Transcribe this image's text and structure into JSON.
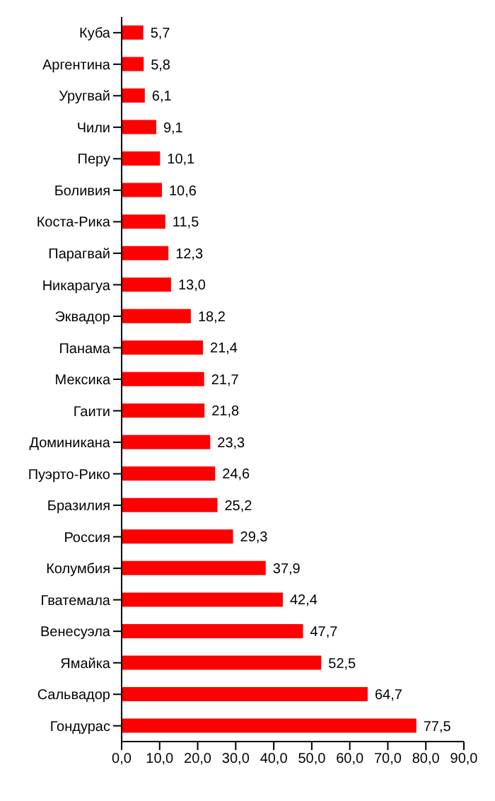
{
  "chart_data": {
    "type": "bar",
    "orientation": "horizontal",
    "categories": [
      "Куба",
      "Аргентина",
      "Уругвай",
      "Чили",
      "Перу",
      "Боливия",
      "Коста-Рика",
      "Парагвай",
      "Никарагуа",
      "Эквадор",
      "Панама",
      "Мексика",
      "Гаити",
      "Доминикана",
      "Пуэрто-Рико",
      "Бразилия",
      "Россия",
      "Колумбия",
      "Гватемала",
      "Венесуэла",
      "Ямайка",
      "Сальвадор",
      "Гондурас"
    ],
    "values": [
      5.7,
      5.8,
      6.1,
      9.1,
      10.1,
      10.6,
      11.5,
      12.3,
      13.0,
      18.2,
      21.4,
      21.7,
      21.8,
      23.3,
      24.6,
      25.2,
      29.3,
      37.9,
      42.4,
      47.7,
      52.5,
      64.7,
      77.5
    ],
    "value_labels": [
      "5,7",
      "5,8",
      "6,1",
      "9,1",
      "10,1",
      "10,6",
      "11,5",
      "12,3",
      "13,0",
      "18,2",
      "21,4",
      "21,7",
      "21,8",
      "23,3",
      "24,6",
      "25,2",
      "29,3",
      "37,9",
      "42,4",
      "47,7",
      "52,5",
      "64,7",
      "77,5"
    ],
    "color": "#ff0000",
    "xlim": [
      0,
      90
    ],
    "xticks": [
      {
        "value": 0,
        "label": "0,0"
      },
      {
        "value": 10,
        "label": "10,0"
      },
      {
        "value": 20,
        "label": "20,0"
      },
      {
        "value": 30,
        "label": "30,0"
      },
      {
        "value": 40,
        "label": "40,0"
      },
      {
        "value": 50,
        "label": "50,0"
      },
      {
        "value": 60,
        "label": "60,0"
      },
      {
        "value": 70,
        "label": "70,0"
      },
      {
        "value": 80,
        "label": "80,0"
      },
      {
        "value": 90,
        "label": "90,0"
      }
    ],
    "grid": false,
    "legend": false
  }
}
